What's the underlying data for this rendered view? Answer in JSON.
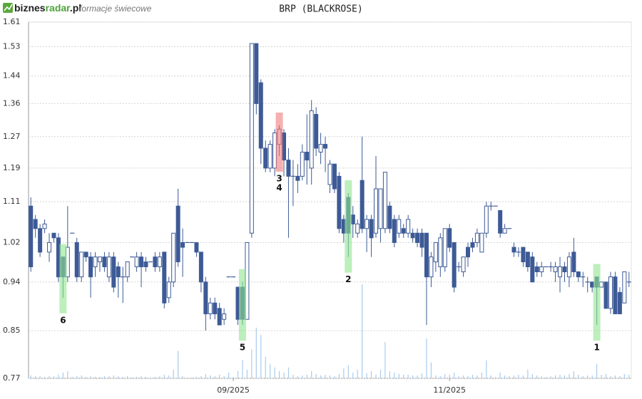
{
  "header": {
    "logo_main": "biznes",
    "logo_accent": "radar",
    "logo_tail": ".pl",
    "subtitle": "formacje świecowe"
  },
  "chart_data": {
    "type": "candlestick",
    "title": "BRP (BLACKROSE)",
    "log_scale": true,
    "grid": true,
    "ylim": [
      0.77,
      1.61
    ],
    "yticks": [
      0.77,
      0.85,
      0.94,
      1.02,
      1.11,
      1.19,
      1.27,
      1.36,
      1.44,
      1.53,
      1.61
    ],
    "xticks": [
      {
        "value": 44,
        "label": "09/2025"
      },
      {
        "value": 91,
        "label": "11/2025"
      }
    ],
    "up_color": "#ffffff",
    "down_color": "#3d5a96",
    "edge_color": "#3d5a96",
    "volume_color": "#a9cbee",
    "open": [
      1.1,
      1.07,
      1.05,
      1.05,
      1.0,
      1.04,
      1.03,
      0.99,
      0.95,
      1.04,
      1.02,
      0.95,
      1.0,
      0.99,
      0.97,
      0.98,
      0.99,
      0.95,
      0.99,
      0.97,
      0.95,
      0.95,
      0.99,
      0.97,
      0.99,
      0.98,
      0.98,
      0.99,
      0.97,
      1.0,
      0.91,
      0.94,
      1.1,
      1.02,
      1.02,
      1.02,
      1.02,
      1.0,
      0.94,
      0.88,
      0.9,
      0.89,
      0.87,
      0.95,
      0.95,
      0.93,
      0.93,
      0.87,
      1.04,
      1.54,
      1.42,
      1.24,
      1.19,
      1.19,
      1.25,
      1.28,
      1.21,
      1.17,
      1.17,
      1.17,
      1.23,
      1.19,
      1.33,
      1.23,
      1.25,
      1.15,
      1.2,
      1.17,
      1.07,
      1.12,
      1.08,
      1.04,
      1.16,
      1.05,
      1.07,
      1.04,
      1.05,
      1.05,
      1.1,
      1.07,
      1.04,
      1.05,
      1.04,
      1.04,
      1.04,
      1.04,
      1.04,
      0.95,
      0.98,
      0.97,
      0.97,
      1.05,
      1.02,
      0.97,
      0.96,
      1.01,
      1.02,
      1.02,
      1.0,
      1.04,
      1.1,
      1.1,
      1.09,
      1.04,
      1.05,
      1.01,
      1.0,
      1.01,
      1.0,
      0.99,
      0.97,
      0.96,
      0.97,
      0.97,
      0.96,
      0.95,
      0.97,
      0.95,
      1.0,
      0.96,
      0.95,
      0.94,
      0.94,
      0.95,
      0.93,
      0.94,
      0.89,
      0.95,
      0.92,
      0.9,
      0.94
    ],
    "high": [
      1.12,
      1.08,
      1.06,
      1.07,
      1.04,
      1.04,
      1.04,
      0.99,
      1.1,
      1.04,
      1.03,
      1.0,
      1.0,
      1.0,
      1.0,
      0.99,
      1.0,
      1.0,
      1.0,
      0.98,
      0.97,
      0.98,
      0.99,
      1.0,
      1.0,
      0.99,
      0.98,
      1.0,
      1.0,
      1.0,
      0.95,
      1.04,
      1.14,
      1.05,
      1.02,
      1.02,
      1.02,
      1.0,
      0.95,
      0.91,
      0.91,
      0.9,
      0.89,
      0.95,
      0.95,
      0.93,
      0.94,
      1.02,
      1.54,
      1.54,
      1.43,
      1.26,
      1.26,
      1.29,
      1.3,
      1.29,
      1.24,
      1.21,
      1.2,
      1.25,
      1.33,
      1.37,
      1.35,
      1.28,
      1.27,
      1.21,
      1.2,
      1.18,
      1.08,
      1.13,
      1.1,
      1.07,
      1.27,
      1.08,
      1.08,
      1.22,
      1.14,
      1.18,
      1.11,
      1.08,
      1.08,
      1.06,
      1.08,
      1.05,
      1.05,
      1.05,
      1.04,
      1.0,
      1.02,
      1.04,
      1.05,
      1.06,
      1.02,
      0.98,
      0.99,
      1.02,
      1.03,
      1.05,
      1.04,
      1.11,
      1.11,
      1.1,
      1.09,
      1.06,
      1.05,
      1.02,
      1.01,
      1.01,
      1.0,
      1.0,
      0.98,
      0.98,
      0.97,
      0.98,
      0.98,
      0.99,
      0.98,
      1.0,
      1.03,
      0.96,
      0.96,
      0.95,
      0.94,
      0.95,
      0.94,
      0.94,
      0.96,
      0.96,
      0.93,
      0.96,
      0.96
    ],
    "low": [
      0.96,
      1.03,
      0.99,
      1.04,
      0.98,
      1.02,
      0.94,
      0.91,
      0.94,
      1.04,
      0.94,
      0.94,
      0.98,
      0.91,
      0.95,
      0.96,
      0.96,
      0.94,
      0.92,
      0.91,
      0.9,
      0.94,
      0.99,
      0.96,
      0.93,
      0.96,
      0.98,
      0.96,
      0.96,
      0.89,
      0.9,
      0.93,
      0.97,
      0.95,
      1.02,
      1.02,
      0.99,
      0.92,
      0.85,
      0.87,
      0.87,
      0.86,
      0.86,
      0.95,
      0.95,
      0.86,
      0.86,
      0.87,
      1.03,
      1.33,
      1.2,
      1.18,
      1.18,
      1.17,
      1.22,
      1.17,
      1.03,
      1.1,
      1.13,
      1.16,
      1.15,
      1.15,
      1.22,
      1.2,
      1.18,
      1.13,
      1.13,
      1.04,
      1.02,
      0.99,
      1.03,
      1.03,
      1.04,
      1.0,
      0.99,
      1.03,
      1.02,
      1.04,
      1.04,
      1.01,
      1.03,
      1.03,
      1.03,
      1.02,
      1.01,
      0.99,
      0.86,
      0.93,
      0.96,
      0.95,
      0.96,
      1.0,
      0.92,
      0.96,
      0.95,
      0.97,
      1.0,
      1.01,
      1.0,
      1.03,
      1.09,
      1.1,
      1.03,
      1.04,
      1.05,
      0.99,
      0.99,
      0.97,
      0.96,
      0.94,
      0.95,
      0.95,
      0.97,
      0.96,
      0.94,
      0.92,
      0.94,
      0.93,
      0.95,
      0.94,
      0.93,
      0.92,
      0.92,
      0.86,
      0.93,
      0.89,
      0.88,
      0.88,
      0.88,
      0.9,
      0.93
    ],
    "close": [
      0.97,
      1.05,
      1.0,
      1.06,
      1.02,
      1.03,
      0.95,
      0.95,
      1.01,
      1.04,
      0.95,
      1.0,
      0.99,
      0.95,
      0.99,
      0.99,
      0.97,
      0.99,
      0.93,
      0.95,
      0.95,
      0.98,
      0.99,
      0.99,
      0.97,
      0.97,
      0.98,
      0.97,
      0.99,
      0.9,
      0.94,
      1.04,
      0.98,
      1.01,
      1.02,
      1.02,
      1.0,
      0.94,
      0.88,
      0.9,
      0.88,
      0.86,
      0.88,
      0.95,
      0.95,
      0.87,
      0.87,
      1.02,
      1.54,
      1.36,
      1.24,
      1.19,
      1.25,
      1.28,
      1.29,
      1.21,
      1.17,
      1.17,
      1.16,
      1.23,
      1.21,
      1.34,
      1.24,
      1.25,
      1.24,
      1.2,
      1.14,
      1.05,
      1.04,
      1.04,
      1.06,
      1.06,
      1.05,
      1.07,
      1.03,
      1.14,
      1.14,
      1.18,
      1.05,
      1.02,
      1.07,
      1.04,
      1.07,
      1.03,
      1.02,
      1.01,
      0.95,
      0.99,
      1.02,
      1.03,
      1.05,
      1.01,
      0.93,
      0.97,
      0.99,
      0.99,
      1.01,
      1.04,
      1.04,
      1.1,
      1.1,
      1.1,
      1.04,
      1.05,
      1.05,
      1.0,
      1.0,
      0.98,
      0.97,
      0.94,
      0.96,
      0.97,
      0.97,
      0.97,
      0.97,
      0.97,
      0.96,
      0.99,
      0.96,
      0.95,
      0.95,
      0.94,
      0.93,
      0.93,
      0.94,
      0.89,
      0.95,
      0.88,
      0.88,
      0.96,
      0.94
    ],
    "volume": [
      4,
      3,
      3,
      2,
      3,
      3,
      5,
      8,
      10,
      2,
      3,
      4,
      2,
      3,
      2,
      2,
      3,
      3,
      4,
      3,
      2,
      3,
      1,
      2,
      3,
      2,
      1,
      2,
      3,
      5,
      4,
      12,
      38,
      3,
      1,
      1,
      2,
      3,
      6,
      4,
      3,
      5,
      3,
      8,
      2,
      10,
      25,
      12,
      40,
      70,
      60,
      30,
      20,
      15,
      10,
      8,
      15,
      5,
      3,
      4,
      5,
      10,
      6,
      4,
      5,
      4,
      3,
      6,
      14,
      18,
      8,
      12,
      130,
      7,
      10,
      5,
      12,
      50,
      10,
      8,
      6,
      5,
      5,
      4,
      4,
      7,
      55,
      22,
      4,
      3,
      6,
      5,
      8,
      3,
      4,
      3,
      5,
      4,
      8,
      25,
      4,
      2,
      8,
      4,
      3,
      4,
      5,
      4,
      12,
      6,
      4,
      3,
      2,
      3,
      4,
      5,
      4,
      6,
      10,
      5,
      3,
      4,
      4,
      20,
      5,
      6,
      3,
      4,
      3,
      6,
      5
    ],
    "patterns": [
      {
        "labels": [
          "6"
        ],
        "index": 7,
        "color": "#8fe48f"
      },
      {
        "labels": [
          "5"
        ],
        "index": 46,
        "color": "#8fe48f"
      },
      {
        "labels": [
          "3",
          "4"
        ],
        "index": 54,
        "color": "#f07c7c"
      },
      {
        "labels": [
          "2"
        ],
        "index": 69,
        "color": "#8fe48f"
      },
      {
        "labels": [
          "1"
        ],
        "index": 123,
        "color": "#8fe48f"
      }
    ]
  }
}
